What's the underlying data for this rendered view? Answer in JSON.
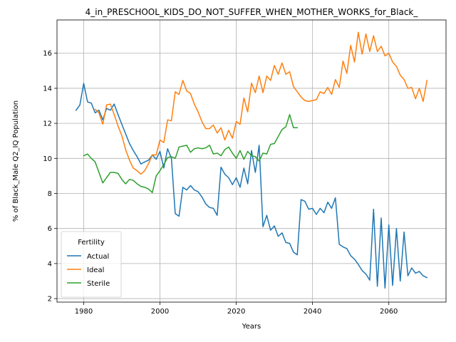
{
  "chart_data": {
    "type": "line",
    "title": "4_in_PRESCHOOL_KIDS_DO_NOT_SUFFER_WHEN_MOTHER_WORKS_for_Black_",
    "xlabel": "Years",
    "ylabel": "% of Black_Male Q2_IQ Population",
    "xlim": [
      1973,
      2075
    ],
    "ylim": [
      1.8,
      17.9
    ],
    "xticks": [
      1980,
      2000,
      2020,
      2040,
      2060
    ],
    "yticks": [
      2,
      4,
      6,
      8,
      10,
      12,
      14,
      16
    ],
    "grid": true,
    "legend": {
      "title": "Fertility",
      "placement": "lower-left"
    },
    "series": [
      {
        "name": "Actual",
        "color": "#1f77b4",
        "x": [
          1978,
          1979,
          1980,
          1981,
          1982,
          1983,
          1984,
          1985,
          1986,
          1987,
          1988,
          1989,
          1990,
          1991,
          1992,
          1993,
          1994,
          1995,
          1996,
          1997,
          1998,
          1999,
          2000,
          2001,
          2002,
          2003,
          2004,
          2005,
          2006,
          2007,
          2008,
          2009,
          2010,
          2011,
          2012,
          2013,
          2014,
          2015,
          2016,
          2017,
          2018,
          2019,
          2020,
          2021,
          2022,
          2023,
          2024,
          2025,
          2026,
          2027,
          2028,
          2029,
          2030,
          2031,
          2032,
          2033,
          2034,
          2035,
          2036,
          2037,
          2038,
          2039,
          2040,
          2041,
          2042,
          2043,
          2044,
          2045,
          2046,
          2047,
          2048,
          2049,
          2050,
          2051,
          2052,
          2053,
          2054,
          2055,
          2056,
          2057,
          2058,
          2059,
          2060,
          2061,
          2062,
          2063,
          2064,
          2065,
          2066,
          2067,
          2068,
          2069,
          2070
        ],
        "y": [
          12.75,
          13.05,
          14.28,
          13.23,
          13.15,
          12.6,
          12.75,
          12.2,
          12.85,
          12.75,
          13.1,
          12.5,
          11.95,
          11.4,
          10.85,
          10.45,
          10.1,
          9.68,
          9.8,
          9.9,
          10.2,
          9.95,
          10.4,
          9.45,
          10.55,
          10.0,
          6.85,
          6.7,
          8.35,
          8.2,
          8.45,
          8.2,
          8.1,
          7.8,
          7.4,
          7.2,
          7.15,
          6.75,
          9.5,
          9.1,
          8.9,
          8.5,
          8.9,
          8.35,
          9.45,
          8.55,
          10.45,
          9.2,
          10.75,
          6.1,
          6.75,
          5.9,
          6.15,
          5.55,
          5.75,
          5.2,
          5.15,
          4.65,
          4.5,
          7.65,
          7.55,
          7.1,
          7.15,
          6.8,
          7.15,
          6.9,
          7.5,
          7.15,
          7.75,
          5.1,
          4.95,
          4.85,
          4.45,
          4.25,
          3.95,
          3.6,
          3.4,
          3.05,
          7.1,
          2.7,
          6.6,
          2.6,
          6.2,
          2.75,
          6.0,
          3.0,
          5.8,
          3.3,
          3.75,
          3.45,
          3.55,
          3.3,
          3.2
        ]
      },
      {
        "name": "Ideal",
        "color": "#ff7f0e",
        "x": [
          1983,
          1984,
          1985,
          1986,
          1987,
          1988,
          1989,
          1990,
          1991,
          1992,
          1993,
          1994,
          1995,
          1996,
          1997,
          1998,
          1999,
          2000,
          2001,
          2002,
          2003,
          2004,
          2005,
          2006,
          2007,
          2008,
          2009,
          2010,
          2011,
          2012,
          2013,
          2014,
          2015,
          2016,
          2017,
          2018,
          2019,
          2020,
          2021,
          2022,
          2023,
          2024,
          2025,
          2026,
          2027,
          2028,
          2029,
          2030,
          2031,
          2032,
          2033,
          2034,
          2035,
          2036,
          2037,
          2038,
          2039,
          2040,
          2041,
          2042,
          2043,
          2044,
          2045,
          2046,
          2047,
          2048,
          2049,
          2050,
          2051,
          2052,
          2053,
          2054,
          2055,
          2056,
          2057,
          2058,
          2059,
          2060,
          2061,
          2062,
          2063,
          2064,
          2065,
          2066,
          2067,
          2068,
          2069,
          2070
        ],
        "y": [
          12.8,
          12.6,
          11.95,
          13.05,
          13.1,
          12.5,
          11.85,
          11.3,
          10.5,
          9.9,
          9.45,
          9.3,
          9.1,
          9.3,
          9.7,
          10.2,
          10.2,
          11.05,
          10.9,
          12.2,
          12.15,
          13.8,
          13.65,
          14.45,
          13.85,
          13.7,
          13.1,
          12.65,
          12.1,
          11.7,
          11.7,
          11.9,
          11.45,
          11.75,
          11.05,
          11.6,
          11.15,
          12.1,
          11.95,
          13.45,
          12.65,
          14.3,
          13.75,
          14.7,
          13.75,
          14.7,
          14.45,
          15.3,
          14.8,
          15.45,
          14.8,
          14.95,
          14.1,
          13.8,
          13.5,
          13.3,
          13.25,
          13.3,
          13.35,
          13.8,
          13.7,
          14.05,
          13.65,
          14.5,
          14.05,
          15.55,
          14.85,
          16.45,
          15.5,
          17.2,
          15.95,
          17.1,
          16.1,
          17.0,
          16.1,
          16.4,
          15.85,
          16.0,
          15.5,
          15.25,
          14.75,
          14.5,
          14.0,
          14.05,
          13.4,
          14.0,
          13.25,
          14.45
        ]
      },
      {
        "name": "Sterile",
        "color": "#2ca02c",
        "x": [
          1980,
          1981,
          1982,
          1983,
          1984,
          1985,
          1986,
          1987,
          1988,
          1989,
          1990,
          1991,
          1992,
          1993,
          1994,
          1995,
          1996,
          1997,
          1998,
          1999,
          2000,
          2001,
          2002,
          2003,
          2004,
          2005,
          2006,
          2007,
          2008,
          2009,
          2010,
          2011,
          2012,
          2013,
          2014,
          2015,
          2016,
          2017,
          2018,
          2019,
          2020,
          2021,
          2022,
          2023,
          2024,
          2025,
          2026,
          2027,
          2028,
          2029,
          2030,
          2031,
          2032,
          2033,
          2034,
          2035,
          2036
        ],
        "y": [
          10.15,
          10.25,
          10.0,
          9.8,
          9.2,
          8.6,
          8.9,
          9.2,
          9.2,
          9.15,
          8.8,
          8.55,
          8.8,
          8.75,
          8.55,
          8.4,
          8.35,
          8.25,
          8.05,
          9.0,
          9.3,
          9.65,
          10.05,
          10.1,
          10.0,
          10.65,
          10.7,
          10.75,
          10.35,
          10.55,
          10.6,
          10.55,
          10.6,
          10.75,
          10.25,
          10.3,
          10.15,
          10.5,
          10.65,
          10.3,
          10.0,
          10.45,
          9.95,
          10.4,
          10.15,
          10.1,
          9.85,
          10.3,
          10.25,
          10.8,
          10.85,
          11.25,
          11.65,
          11.8,
          12.5,
          11.75,
          11.75
        ]
      }
    ]
  }
}
